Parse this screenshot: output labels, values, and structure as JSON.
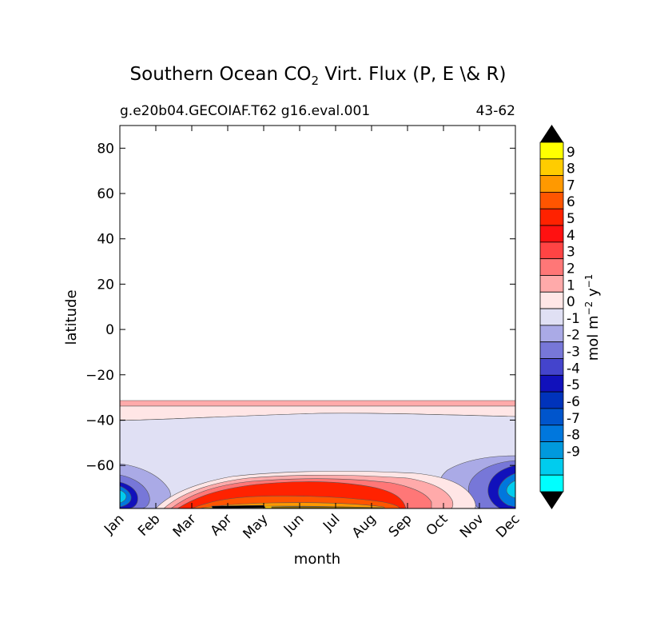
{
  "chart_data": {
    "type": "heatmap",
    "title_main": "Southern Ocean CO",
    "title_sub": "2",
    "title_rest": " Virt. Flux (P, E \\& R)",
    "subtitle_left": "g.e20b04.GECOIAF.T62 g16.eval.001",
    "subtitle_right": "43-62",
    "xlabel": "month",
    "ylabel": "latitude",
    "x_categories": [
      "Jan",
      "Feb",
      "Mar",
      "Apr",
      "May",
      "Jun",
      "Jul",
      "Aug",
      "Sep",
      "Oct",
      "Nov",
      "Dec"
    ],
    "y_ticks": [
      80,
      60,
      40,
      20,
      0,
      -20,
      -40,
      -60
    ],
    "y_tick_labels": [
      "80",
      "60",
      "40",
      "20",
      "0",
      "−20",
      "−40",
      "−60"
    ],
    "ylim": [
      -79,
      90
    ],
    "colorbar": {
      "label_main": "mol m",
      "label_sup1": "−2",
      "label_mid": " y",
      "label_sup2": "−1",
      "tick_labels": [
        "9",
        "8",
        "7",
        "6",
        "5",
        "4",
        "3",
        "2",
        "1",
        "0",
        "-1",
        "-2",
        "-3",
        "-4",
        "-5",
        "-6",
        "-7",
        "-8",
        "-9"
      ],
      "colors": [
        "#ffff00",
        "#ffcc00",
        "#ff9900",
        "#ff5500",
        "#ff2200",
        "#ff1111",
        "#ff4444",
        "#ff7777",
        "#ffaaaa",
        "#ffe6e6",
        "#e0e0f4",
        "#aaaae6",
        "#7777d8",
        "#4444cc",
        "#1111bb",
        "#0033bb",
        "#0055cc",
        "#0077dd",
        "#0099dd",
        "#00ccee",
        "#00ffff"
      ],
      "extend_colors": {
        "top": "#000000",
        "bottom": "#000000"
      }
    }
  }
}
